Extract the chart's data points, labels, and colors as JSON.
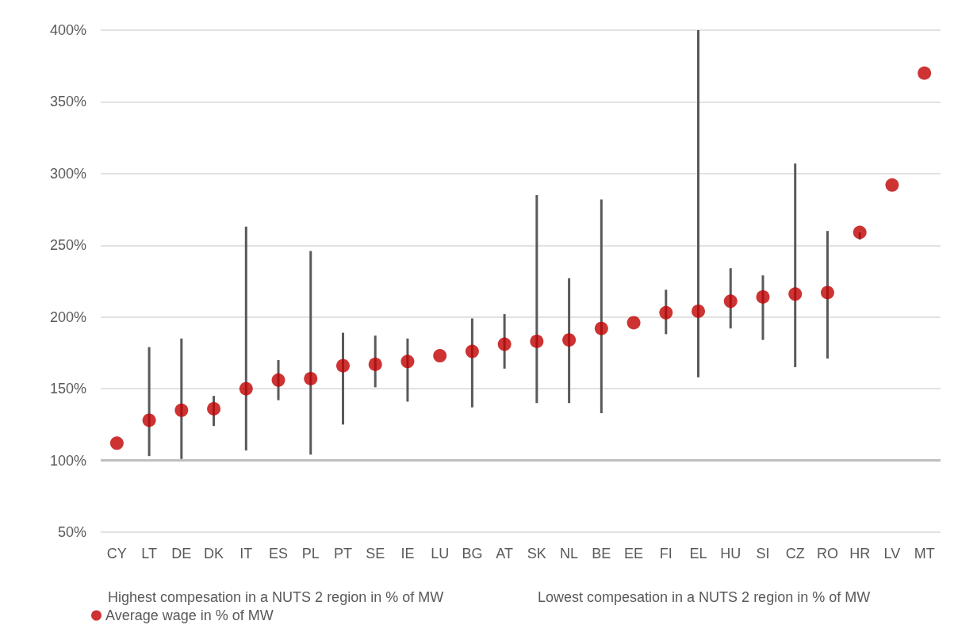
{
  "chart_data": {
    "type": "scatter",
    "categories": [
      "CY",
      "LT",
      "DE",
      "DK",
      "IT",
      "ES",
      "PL",
      "PT",
      "SE",
      "IE",
      "LU",
      "BG",
      "AT",
      "SK",
      "NL",
      "BE",
      "EE",
      "FI",
      "EL",
      "HU",
      "SI",
      "CZ",
      "RO",
      "HR",
      "LV",
      "MT"
    ],
    "series": [
      {
        "name": "Average wage in % of MW",
        "color": "#c00000",
        "values": [
          112,
          128,
          135,
          136,
          150,
          156,
          157,
          166,
          167,
          169,
          173,
          176,
          181,
          183,
          184,
          192,
          196,
          203,
          204,
          211,
          214,
          216,
          217,
          259,
          292,
          370
        ],
        "errors": [
          null,
          [
            103,
            179
          ],
          [
            101,
            185
          ],
          [
            124,
            145
          ],
          [
            107,
            263
          ],
          [
            142,
            170
          ],
          [
            104,
            246
          ],
          [
            125,
            189
          ],
          [
            151,
            187
          ],
          [
            141,
            185
          ],
          null,
          [
            137,
            199
          ],
          [
            164,
            202
          ],
          [
            140,
            285
          ],
          [
            140,
            227
          ],
          [
            133,
            282
          ],
          null,
          [
            188,
            219
          ],
          [
            158,
            400
          ],
          [
            192,
            234
          ],
          [
            184,
            229
          ],
          [
            165,
            307
          ],
          [
            171,
            260
          ],
          [
            254,
            259
          ],
          null,
          null
        ]
      }
    ],
    "ylim": [
      50,
      400
    ],
    "yticks": [
      {
        "value": 50,
        "label": "50%"
      },
      {
        "value": 100,
        "label": "100%"
      },
      {
        "value": 150,
        "label": "150%"
      },
      {
        "value": 200,
        "label": "200%"
      },
      {
        "value": 250,
        "label": "250%"
      },
      {
        "value": 300,
        "label": "300%"
      },
      {
        "value": 350,
        "label": "350%"
      },
      {
        "value": 400,
        "label": "400%"
      }
    ],
    "ref_lines": [
      {
        "axis": "y",
        "value": 100,
        "color": "#bfbfbf"
      }
    ],
    "annotations": [
      "Highest compesation in a NUTS 2 region in % of MW",
      "Lowest compesation in a NUTS 2 region in % of MW"
    ],
    "grid": "y",
    "legend": "bottom left",
    "marker": "circle"
  }
}
